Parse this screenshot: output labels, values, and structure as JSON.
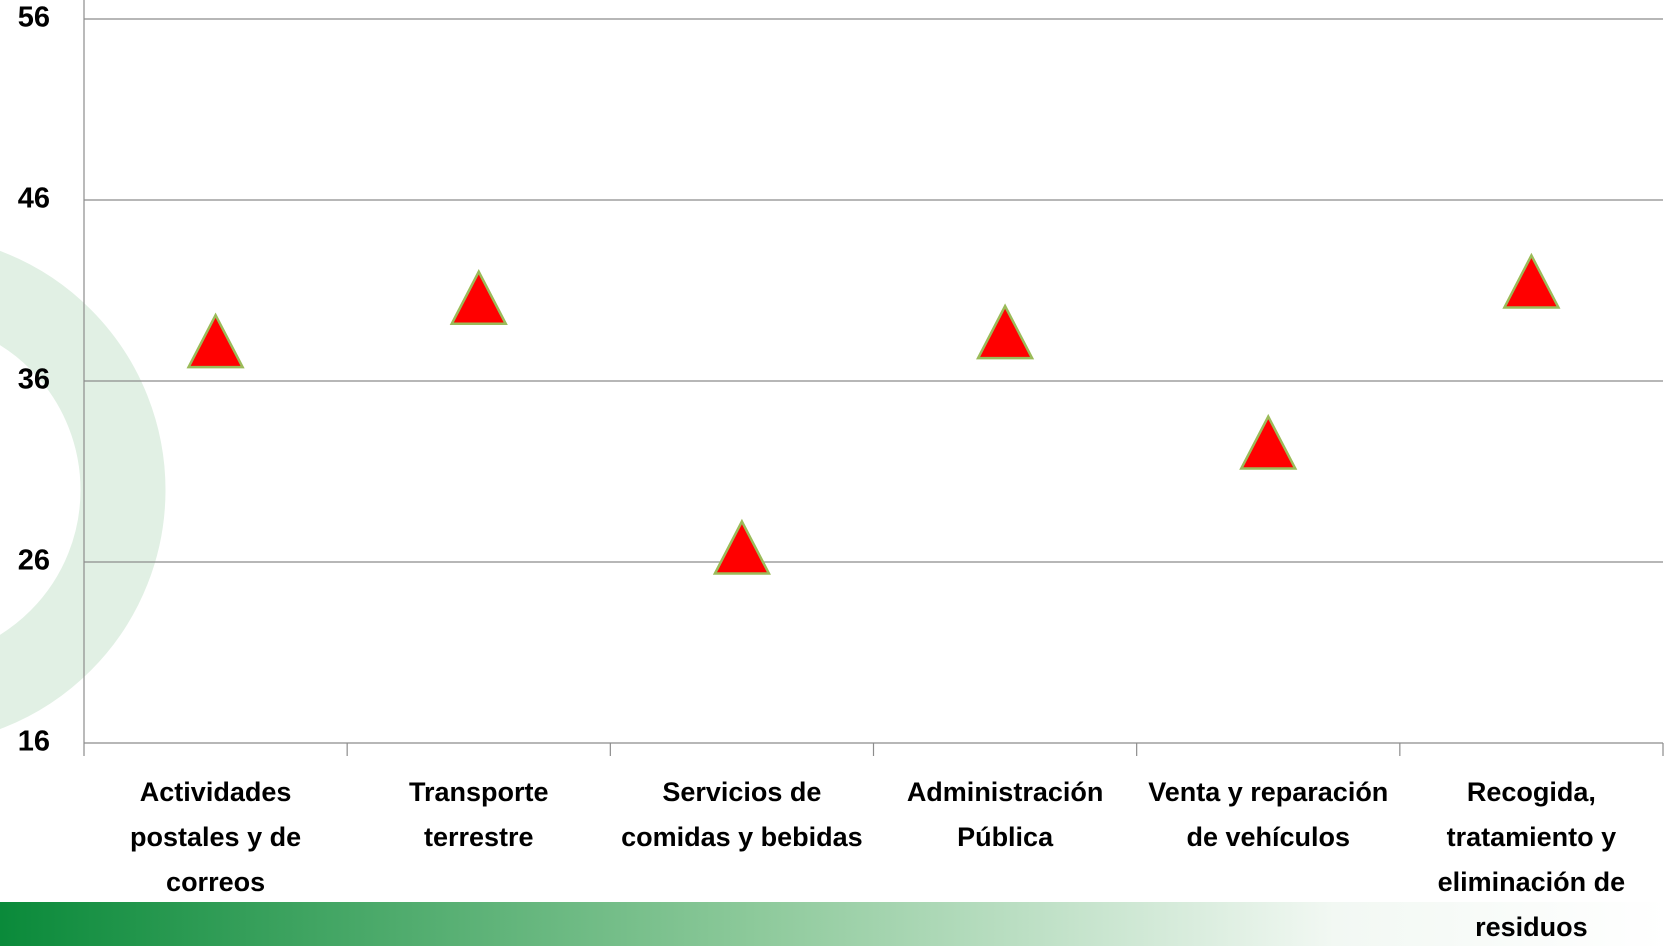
{
  "chart_data": {
    "type": "scatter",
    "categories": [
      "Actividades postales y de correos",
      "Transporte terrestre",
      "Servicios de comidas y bebidas",
      "Administración Pública",
      "Venta y reparación de vehículos",
      "Recogida, tratamiento y eliminación de residuos"
    ],
    "values": [
      38.2,
      40.6,
      26.8,
      38.7,
      32.6,
      41.5
    ],
    "color": "#ff0000",
    "edge_color": "#9bbb59",
    "ylim": [
      16,
      56
    ],
    "yticks": [
      16,
      26,
      36,
      46,
      56
    ],
    "grid": true
  }
}
